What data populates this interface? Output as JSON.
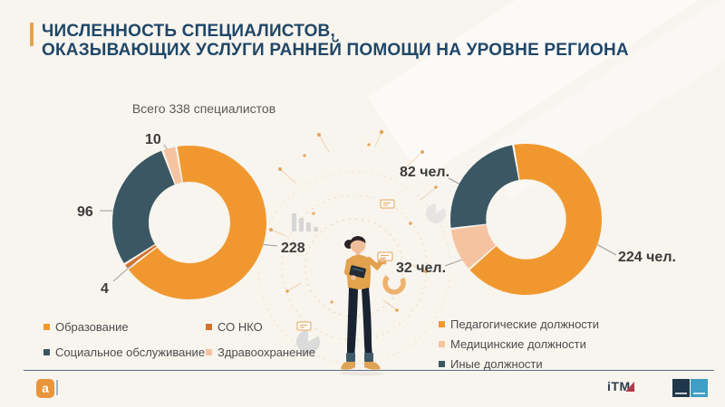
{
  "slide": {
    "title_line1": "ЧИСЛЕННОСТЬ СПЕЦИАЛИСТОВ,",
    "title_line2": "ОКАЗЫВАЮЩИХ УСЛУГИ РАННЕЙ ПОМОЩИ НА УРОВНЕ РЕГИОНА",
    "title_color": "#1F4768",
    "accent_color": "#E9A14D",
    "background_color": "#F8F4EE"
  },
  "chart_data": [
    {
      "type": "pie",
      "subtype": "donut",
      "title": "Всего 338 специалистов",
      "total": 338,
      "start_angle": 350,
      "legend_position": "bottom",
      "segments": [
        {
          "label": "Образование",
          "value": 228,
          "data_label": "228",
          "color": "#F0982F"
        },
        {
          "label": "СО НКО",
          "value": 4,
          "data_label": "4",
          "color": "#D4722E"
        },
        {
          "label": "Социальное обслуживание",
          "value": 96,
          "data_label": "96",
          "color": "#3A5763"
        },
        {
          "label": "Здравоохранение",
          "value": 10,
          "data_label": "10",
          "color": "#F6C3A0"
        }
      ]
    },
    {
      "type": "pie",
      "subtype": "donut",
      "title": "",
      "total": 338,
      "start_angle": 350,
      "legend_position": "right-bottom",
      "segments": [
        {
          "label": "Педагогические должности",
          "value": 224,
          "data_label": "224 чел.",
          "color": "#F0982F"
        },
        {
          "label": "Медицинские должности",
          "value": 32,
          "data_label": "32 чел.",
          "color": "#F6C3A0"
        },
        {
          "label": "Иные должности",
          "value": 82,
          "data_label": "82 чел.",
          "color": "#3A5763"
        }
      ]
    }
  ],
  "footer": {
    "itm_logo_text": "iTM"
  },
  "decor": {
    "logo_left_letter": "a",
    "illustration": "woman-with-tablet",
    "icons": [
      "bar-chart-icon",
      "pie-chart-icon",
      "ring-icon",
      "network-dots",
      "card-icon"
    ]
  }
}
